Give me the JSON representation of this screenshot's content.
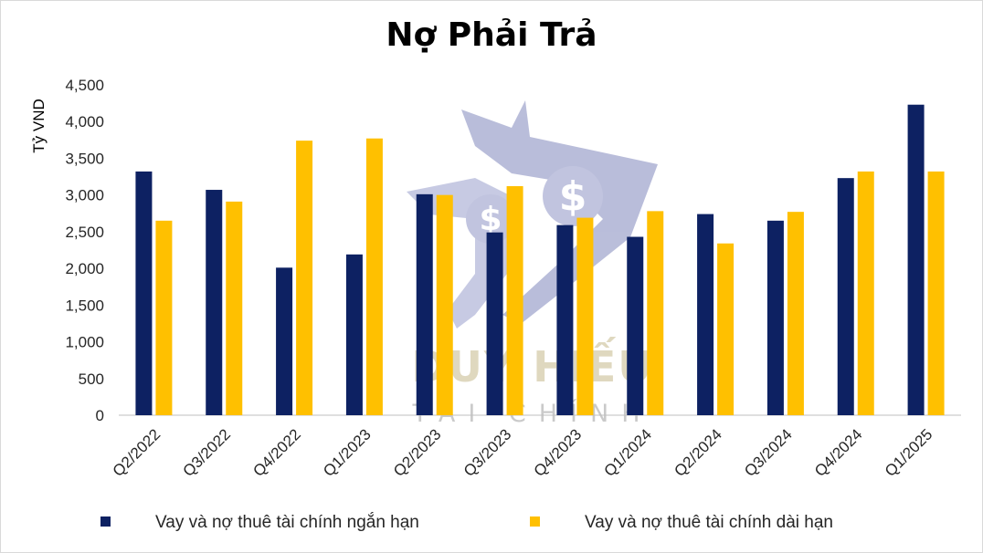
{
  "chart_data": {
    "type": "bar",
    "title": "Nợ Phải Trả",
    "ylabel": "Tỷ VND",
    "xlabel": "",
    "ylim": [
      0,
      4500
    ],
    "yticks": [
      0,
      500,
      1000,
      1500,
      2000,
      2500,
      3000,
      3500,
      4000,
      4500
    ],
    "ytick_labels": [
      "0",
      "500",
      "1,000",
      "1,500",
      "2,000",
      "2,500",
      "3,000",
      "3,500",
      "4,000",
      "4,500"
    ],
    "categories": [
      "Q2/2022",
      "Q3/2022",
      "Q4/2022",
      "Q1/2023",
      "Q2/2023",
      "Q3/2023",
      "Q4/2023",
      "Q1/2024",
      "Q2/2024",
      "Q3/2024",
      "Q4/2024",
      "Q1/2025"
    ],
    "series": [
      {
        "name": "Vay và nợ thuê tài chính ngắn hạn",
        "color": "#0d2162",
        "values": [
          3320,
          3070,
          2010,
          2190,
          3010,
          2490,
          2590,
          2430,
          2740,
          2650,
          3230,
          4230
        ]
      },
      {
        "name": "Vay và nợ thuê tài chính dài hạn",
        "color": "#ffc000",
        "values": [
          2650,
          2910,
          3740,
          3770,
          3000,
          3120,
          2690,
          2780,
          2340,
          2770,
          3320,
          3320
        ]
      }
    ],
    "legend_position": "bottom",
    "grid": false
  },
  "watermark": {
    "line1": "DUY HIẾU",
    "line2": "TÀI CHÍNH",
    "icon": "shield-dollar-icon"
  }
}
